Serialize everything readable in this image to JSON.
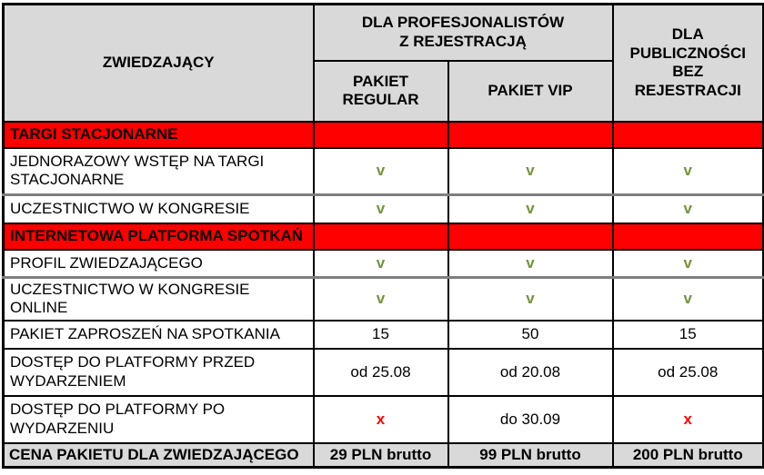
{
  "table": {
    "header": {
      "visitor": "ZWIEDZAJĄCY",
      "professionals_group": "DLA PROFESJONALISTÓW\nZ REJESTRACJĄ",
      "pakiet_regular": "PAKIET\nREGULAR",
      "pakiet_vip": "PAKIET VIP",
      "public": "DLA\nPUBLICZNOŚCI\nBEZ REJESTRACJI"
    },
    "rows": [
      {
        "type": "section",
        "label": "TARGI STACJONARNE"
      },
      {
        "type": "data",
        "label": "JEDNORAZOWY WSTĘP NA TARGI STACJONARNE",
        "values": [
          {
            "text": "v",
            "kind": "check"
          },
          {
            "text": "v",
            "kind": "check"
          },
          {
            "text": "v",
            "kind": "check"
          }
        ]
      },
      {
        "type": "data",
        "label": "UCZESTNICTWO W KONGRESIE",
        "values": [
          {
            "text": "v",
            "kind": "check"
          },
          {
            "text": "v",
            "kind": "check"
          },
          {
            "text": "v",
            "kind": "check"
          }
        ]
      },
      {
        "type": "section",
        "label": "INTERNETOWA PLATFORMA SPOTKAŃ"
      },
      {
        "type": "data",
        "label": "PROFIL ZWIEDZAJĄCEGO",
        "values": [
          {
            "text": "v",
            "kind": "check"
          },
          {
            "text": "v",
            "kind": "check"
          },
          {
            "text": "v",
            "kind": "check"
          }
        ]
      },
      {
        "type": "data",
        "label": "UCZESTNICTWO W KONGRESIE ONLINE",
        "values": [
          {
            "text": "v",
            "kind": "check"
          },
          {
            "text": "v",
            "kind": "check"
          },
          {
            "text": "v",
            "kind": "check"
          }
        ]
      },
      {
        "type": "data",
        "label": "PAKIET ZAPROSZEŃ NA SPOTKANIA",
        "values": [
          {
            "text": "15",
            "kind": "plain"
          },
          {
            "text": "50",
            "kind": "plain"
          },
          {
            "text": "15",
            "kind": "plain"
          }
        ]
      },
      {
        "type": "data",
        "label": "DOSTĘP DO PLATFORMY PRZED WYDARZENIEM",
        "values": [
          {
            "text": "od 25.08",
            "kind": "plain"
          },
          {
            "text": "od 20.08",
            "kind": "plain"
          },
          {
            "text": "od 25.08",
            "kind": "plain"
          }
        ]
      },
      {
        "type": "data",
        "label": "DOSTĘP DO PLATFORMY PO WYDARZENIU",
        "values": [
          {
            "text": "x",
            "kind": "cross"
          },
          {
            "text": "do 30.09",
            "kind": "plain"
          },
          {
            "text": "x",
            "kind": "cross"
          }
        ]
      },
      {
        "type": "footer",
        "label": "CENA PAKIETU DLA ZWIEDZAJĄCEGO",
        "values": [
          {
            "text": "29 PLN brutto",
            "kind": "plain"
          },
          {
            "text": "99 PLN brutto",
            "kind": "plain"
          },
          {
            "text": "200 PLN brutto",
            "kind": "plain"
          }
        ]
      }
    ]
  },
  "legend": {
    "check_symbol": "v",
    "cross_symbol": "x"
  },
  "colors": {
    "section_background": "#FF0000",
    "header_background": "#D9D9D9",
    "footer_background": "#D9D9D9",
    "check_green": "#76923C",
    "cross_red": "#FF0000",
    "border_black": "#000000",
    "border_grey": "#7F7F7F"
  }
}
